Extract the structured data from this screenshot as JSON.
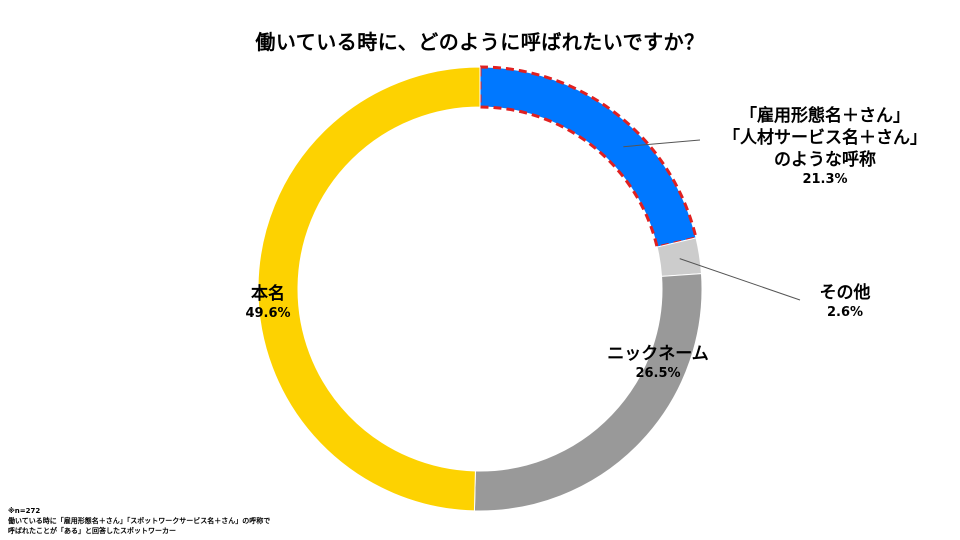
{
  "title": "働いている時に、どのように呼ばれたいですか？",
  "chart_data": {
    "type": "pie",
    "style": "donut",
    "slices": [
      {
        "label_lines": [
          "「雇用形態名＋さん」",
          "「人材サービス名＋さん」",
          "のような呼称"
        ],
        "value": 21.3,
        "value_label": "21.3%",
        "color": "#0078FF",
        "highlight": "red-dashed-outline"
      },
      {
        "label_lines": [
          "その他"
        ],
        "value": 2.6,
        "value_label": "2.6%",
        "color": "#CCCCCC"
      },
      {
        "label_lines": [
          "ニックネーム"
        ],
        "value": 26.5,
        "value_label": "26.5%",
        "color": "#999999"
      },
      {
        "label_lines": [
          "本名"
        ],
        "value": 49.6,
        "value_label": "49.6%",
        "color": "#FDD201"
      }
    ],
    "start": "12 o'clock",
    "direction": "clockwise"
  },
  "footnote": {
    "lines": [
      "※n=272",
      "働いている時に「雇用形態名＋さん」「スポットワークサービス名＋さん」の呼称で",
      "呼ばれたことが「ある」と回答したスポットワーカー"
    ]
  }
}
